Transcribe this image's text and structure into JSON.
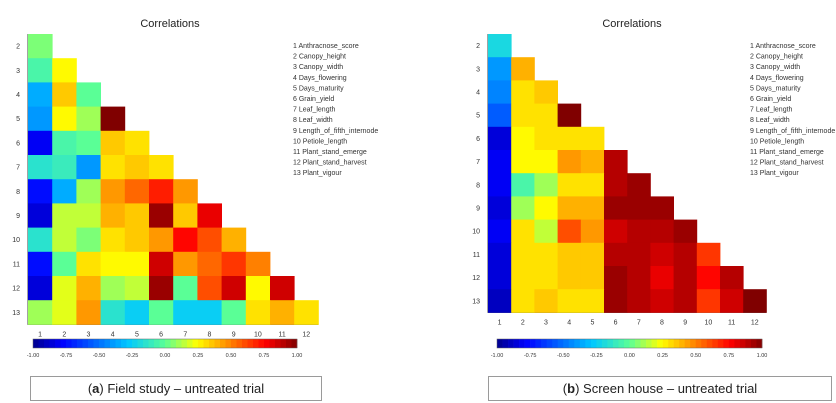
{
  "chart_data": [
    {
      "type": "heatmap",
      "title": "Correlations",
      "row_labels": [
        "2",
        "3",
        "4",
        "5",
        "6",
        "7",
        "8",
        "9",
        "10",
        "11",
        "12",
        "13"
      ],
      "col_labels": [
        "1",
        "2",
        "3",
        "4",
        "5",
        "6",
        "7",
        "8",
        "9",
        "10",
        "11",
        "12"
      ],
      "legend_entries": [
        "1  Anthracnose_score",
        "2  Canopy_height",
        "3  Canopy_width",
        "4  Days_flowering",
        "5  Days_maturity",
        "6  Grain_yield",
        "7  Leaf_length",
        "8  Leaf_width",
        "9  Length_of_fifth_internode",
        "10  Petiole_length",
        "11  Plant_stand_emerge",
        "12  Plant_stand_harvest",
        "13  Plant_vigour"
      ],
      "colorbar": {
        "range": [
          -1,
          1
        ],
        "ticks": [
          "-1.00",
          "-0.75",
          "-0.50",
          "-0.25",
          "0.00",
          "0.25",
          "0.50",
          "0.75",
          "1.00"
        ]
      },
      "values": [
        [
          0.05
        ],
        [
          -0.05,
          0.25
        ],
        [
          -0.35,
          0.35,
          0.0
        ],
        [
          -0.4,
          0.25,
          0.1,
          1.0
        ],
        [
          -0.8,
          -0.05,
          0.0,
          0.35,
          0.3
        ],
        [
          -0.15,
          -0.1,
          -0.4,
          0.3,
          0.35,
          0.3
        ],
        [
          -0.75,
          -0.35,
          0.1,
          0.45,
          0.55,
          0.7,
          0.45
        ],
        [
          -0.85,
          0.15,
          0.15,
          0.4,
          0.35,
          0.95,
          0.35,
          0.8
        ],
        [
          -0.15,
          0.15,
          0.05,
          0.3,
          0.35,
          0.45,
          0.75,
          0.6,
          0.4
        ],
        [
          -0.75,
          0.0,
          0.3,
          0.25,
          0.25,
          0.85,
          0.45,
          0.55,
          0.65,
          0.5
        ],
        [
          -0.85,
          0.2,
          0.4,
          0.1,
          0.15,
          0.95,
          0.0,
          0.6,
          0.85,
          0.25,
          0.85
        ],
        [
          0.1,
          0.2,
          0.45,
          -0.15,
          -0.25,
          0.0,
          -0.25,
          -0.25,
          0.0,
          0.3,
          0.4,
          0.3
        ]
      ],
      "caption": {
        "letter": "a",
        "text": "Field study – untreated trial"
      }
    },
    {
      "type": "heatmap",
      "title": "Correlations",
      "row_labels": [
        "2",
        "3",
        "4",
        "5",
        "6",
        "7",
        "8",
        "9",
        "10",
        "11",
        "12",
        "13"
      ],
      "col_labels": [
        "1",
        "2",
        "3",
        "4",
        "5",
        "6",
        "7",
        "8",
        "9",
        "10",
        "11",
        "12"
      ],
      "legend_entries": [
        "1  Anthracnose_score",
        "2  Canopy_height",
        "3  Canopy_width",
        "4  Days_flowering",
        "5  Days_maturity",
        "6  Grain_yield",
        "7  Leaf_length",
        "8  Leaf_width",
        "9  Length_of_fifth_internode",
        "10  Petiole_length",
        "11  Plant_stand_emerge",
        "12  Plant_stand_harvest",
        "13  Plant_vigour"
      ],
      "colorbar": {
        "range": [
          -1,
          1
        ],
        "ticks": [
          "-1.00",
          "-0.75",
          "-0.50",
          "-0.25",
          "0.00",
          "0.25",
          "0.50",
          "0.75",
          "1.00"
        ]
      },
      "values": [
        [
          -0.2
        ],
        [
          -0.4,
          0.4
        ],
        [
          -0.45,
          0.3,
          0.35
        ],
        [
          -0.55,
          0.3,
          0.3,
          1.0
        ],
        [
          -0.85,
          0.25,
          0.3,
          0.3,
          0.3
        ],
        [
          -0.8,
          0.25,
          0.25,
          0.45,
          0.4,
          0.9
        ],
        [
          -0.8,
          -0.05,
          0.1,
          0.3,
          0.3,
          0.9,
          0.95
        ],
        [
          -0.85,
          0.1,
          0.25,
          0.4,
          0.4,
          0.95,
          0.95,
          0.95
        ],
        [
          -0.8,
          0.3,
          0.15,
          0.6,
          0.45,
          0.85,
          0.9,
          0.9,
          0.95
        ],
        [
          -0.85,
          0.3,
          0.3,
          0.35,
          0.35,
          0.9,
          0.9,
          0.85,
          0.9,
          0.65
        ],
        [
          -0.85,
          0.3,
          0.3,
          0.35,
          0.35,
          0.95,
          0.9,
          0.8,
          0.9,
          0.75,
          0.9
        ],
        [
          -0.9,
          0.3,
          0.35,
          0.3,
          0.3,
          0.95,
          0.9,
          0.85,
          0.9,
          0.65,
          0.85,
          1.0
        ]
      ],
      "caption": {
        "letter": "b",
        "text": "Screen house – untreated trial"
      }
    }
  ]
}
